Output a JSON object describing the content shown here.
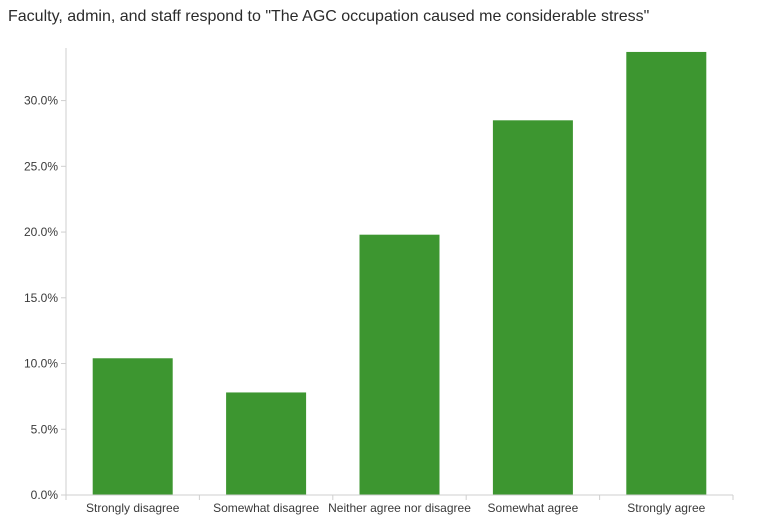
{
  "chart_data": {
    "type": "bar",
    "title": "Faculty, admin, and staff respond to \"The AGC occupation caused me considerable stress\"",
    "xlabel": "",
    "ylabel": "",
    "categories": [
      "Strongly disagree",
      "Somewhat disagree",
      "Neither agree nor disagree",
      "Somewhat agree",
      "Strongly agree"
    ],
    "values": [
      10.4,
      7.8,
      19.8,
      28.5,
      33.7
    ],
    "y_ticks": [
      "0.0%",
      "5.0%",
      "10.0%",
      "15.0%",
      "20.0%",
      "25.0%",
      "30.0%"
    ],
    "ylim": [
      0,
      34
    ],
    "y_unit": "%",
    "grid": false,
    "bar_color": "#3d9630",
    "axis_color": "#cfcfcf"
  }
}
